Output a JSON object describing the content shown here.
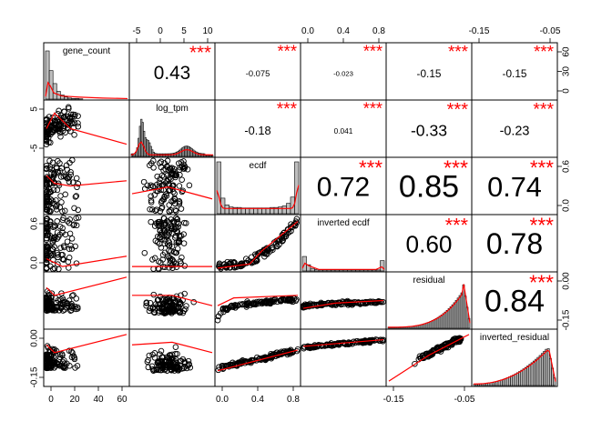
{
  "chart_data": {
    "type": "scatter",
    "variables": [
      "gene_count",
      "log_tpm",
      "ecdf",
      "inverted ecdf",
      "residual",
      "inverted_residual"
    ],
    "correlations": [
      {
        "row": 0,
        "col": 1,
        "value": "0.43",
        "stars": "***"
      },
      {
        "row": 0,
        "col": 2,
        "value": "-0.075",
        "stars": "***"
      },
      {
        "row": 0,
        "col": 3,
        "value": "-0.023",
        "stars": "***"
      },
      {
        "row": 0,
        "col": 4,
        "value": "-0.15",
        "stars": "***"
      },
      {
        "row": 0,
        "col": 5,
        "value": "-0.15",
        "stars": "***"
      },
      {
        "row": 1,
        "col": 2,
        "value": "-0.18",
        "stars": "***"
      },
      {
        "row": 1,
        "col": 3,
        "value": "0.041",
        "stars": "***"
      },
      {
        "row": 1,
        "col": 4,
        "value": "-0.33",
        "stars": "***"
      },
      {
        "row": 1,
        "col": 5,
        "value": "-0.23",
        "stars": "***"
      },
      {
        "row": 2,
        "col": 3,
        "value": "0.72",
        "stars": "***"
      },
      {
        "row": 2,
        "col": 4,
        "value": "0.85",
        "stars": "***"
      },
      {
        "row": 2,
        "col": 5,
        "value": "0.74",
        "stars": "***"
      },
      {
        "row": 3,
        "col": 4,
        "value": "0.60",
        "stars": "***"
      },
      {
        "row": 3,
        "col": 5,
        "value": "0.78",
        "stars": "***"
      },
      {
        "row": 4,
        "col": 5,
        "value": "0.84",
        "stars": "***"
      }
    ],
    "top_axis": [
      {
        "col": 1,
        "ticks": [
          "-5",
          "0",
          "5",
          "10"
        ]
      },
      {
        "col": 3,
        "ticks": [
          "0.0",
          "0.4",
          "0.8"
        ]
      },
      {
        "col": 5,
        "ticks": [
          "-0.15",
          "-0.05"
        ]
      }
    ],
    "bottom_axis": [
      {
        "col": 0,
        "ticks": [
          "0",
          "20",
          "40",
          "60"
        ]
      },
      {
        "col": 2,
        "ticks": [
          "0.0",
          "0.4",
          "0.8"
        ]
      },
      {
        "col": 4,
        "ticks": [
          "-0.15",
          "-0.05"
        ]
      }
    ],
    "left_axis": [
      {
        "row": 1,
        "ticks": [
          "5",
          "-5"
        ]
      },
      {
        "row": 3,
        "ticks": [
          "0.6",
          "0.0"
        ]
      },
      {
        "row": 5,
        "ticks": [
          "0.00",
          "-0.15"
        ]
      }
    ],
    "right_axis": [
      {
        "row": 0,
        "ticks": [
          "60",
          "30",
          "0"
        ]
      },
      {
        "row": 2,
        "ticks": [
          "0.6",
          "0.0"
        ]
      },
      {
        "row": 4,
        "ticks": [
          "0.00",
          "-0.15"
        ]
      }
    ],
    "colors": {
      "stars": "#ff0000",
      "fit_line": "#ff0000",
      "points": "#000000",
      "hist_fill": "#bebebe",
      "density": "#ff0000"
    }
  }
}
